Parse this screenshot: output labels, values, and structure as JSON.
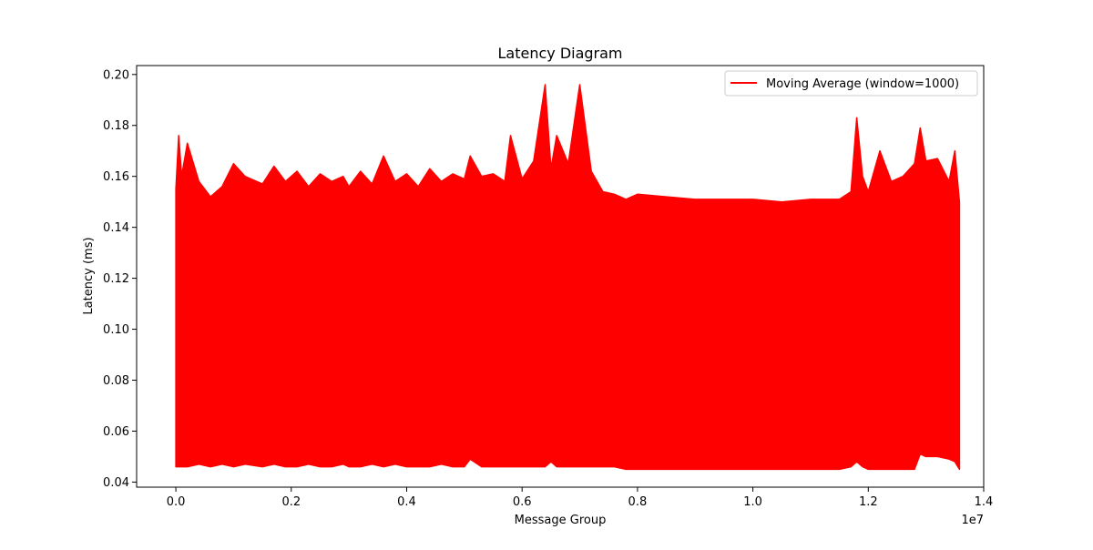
{
  "chart_data": {
    "type": "line",
    "title": "Latency Diagram",
    "xlabel": "Message Group",
    "ylabel": "Latency (ms)",
    "x_offset_label": "1e7",
    "xlim": [
      -0.068,
      1.4
    ],
    "ylim": [
      0.038,
      0.2035
    ],
    "x_ticks": [
      0.0,
      0.2,
      0.4,
      0.6,
      0.8,
      1.0,
      1.2,
      1.4
    ],
    "x_tick_labels": [
      "0.0",
      "0.2",
      "0.4",
      "0.6",
      "0.8",
      "1.0",
      "1.2",
      "1.4"
    ],
    "y_ticks": [
      0.04,
      0.06,
      0.08,
      0.1,
      0.12,
      0.14,
      0.16,
      0.18,
      0.2
    ],
    "y_tick_labels": [
      "0.04",
      "0.06",
      "0.08",
      "0.10",
      "0.12",
      "0.14",
      "0.16",
      "0.18",
      "0.20"
    ],
    "grid": false,
    "legend": {
      "position": "upper-right",
      "entries": [
        "Moving Average (window=1000)"
      ]
    },
    "series": [
      {
        "name": "Moving Average (window=1000)",
        "color": "#ff0000",
        "x": [
          0.0,
          0.005,
          0.01,
          0.02,
          0.04,
          0.06,
          0.08,
          0.1,
          0.12,
          0.15,
          0.17,
          0.19,
          0.21,
          0.23,
          0.25,
          0.27,
          0.29,
          0.3,
          0.32,
          0.34,
          0.36,
          0.38,
          0.4,
          0.42,
          0.44,
          0.46,
          0.48,
          0.5,
          0.51,
          0.53,
          0.55,
          0.57,
          0.58,
          0.6,
          0.62,
          0.64,
          0.65,
          0.66,
          0.68,
          0.7,
          0.72,
          0.74,
          0.76,
          0.78,
          0.8,
          0.85,
          0.9,
          0.95,
          1.0,
          1.05,
          1.1,
          1.15,
          1.17,
          1.18,
          1.19,
          1.2,
          1.22,
          1.24,
          1.26,
          1.28,
          1.29,
          1.3,
          1.32,
          1.34,
          1.35,
          1.358
        ],
        "y_upper": [
          0.155,
          0.176,
          0.16,
          0.173,
          0.158,
          0.152,
          0.156,
          0.165,
          0.16,
          0.157,
          0.164,
          0.158,
          0.162,
          0.156,
          0.161,
          0.158,
          0.16,
          0.156,
          0.162,
          0.157,
          0.168,
          0.158,
          0.161,
          0.156,
          0.163,
          0.158,
          0.161,
          0.159,
          0.168,
          0.16,
          0.161,
          0.158,
          0.176,
          0.159,
          0.166,
          0.196,
          0.163,
          0.176,
          0.165,
          0.196,
          0.162,
          0.154,
          0.153,
          0.151,
          0.153,
          0.152,
          0.151,
          0.151,
          0.151,
          0.15,
          0.151,
          0.151,
          0.154,
          0.183,
          0.16,
          0.154,
          0.17,
          0.158,
          0.16,
          0.165,
          0.179,
          0.166,
          0.167,
          0.158,
          0.17,
          0.15
        ],
        "y_lower": [
          0.046,
          0.046,
          0.046,
          0.046,
          0.047,
          0.046,
          0.047,
          0.046,
          0.047,
          0.046,
          0.047,
          0.046,
          0.046,
          0.047,
          0.046,
          0.046,
          0.047,
          0.046,
          0.046,
          0.047,
          0.046,
          0.047,
          0.046,
          0.046,
          0.046,
          0.047,
          0.046,
          0.046,
          0.049,
          0.046,
          0.046,
          0.046,
          0.046,
          0.046,
          0.046,
          0.046,
          0.048,
          0.046,
          0.046,
          0.046,
          0.046,
          0.046,
          0.046,
          0.045,
          0.045,
          0.045,
          0.045,
          0.045,
          0.045,
          0.045,
          0.045,
          0.045,
          0.046,
          0.048,
          0.046,
          0.045,
          0.045,
          0.045,
          0.045,
          0.045,
          0.051,
          0.05,
          0.05,
          0.049,
          0.048,
          0.045
        ]
      }
    ]
  }
}
